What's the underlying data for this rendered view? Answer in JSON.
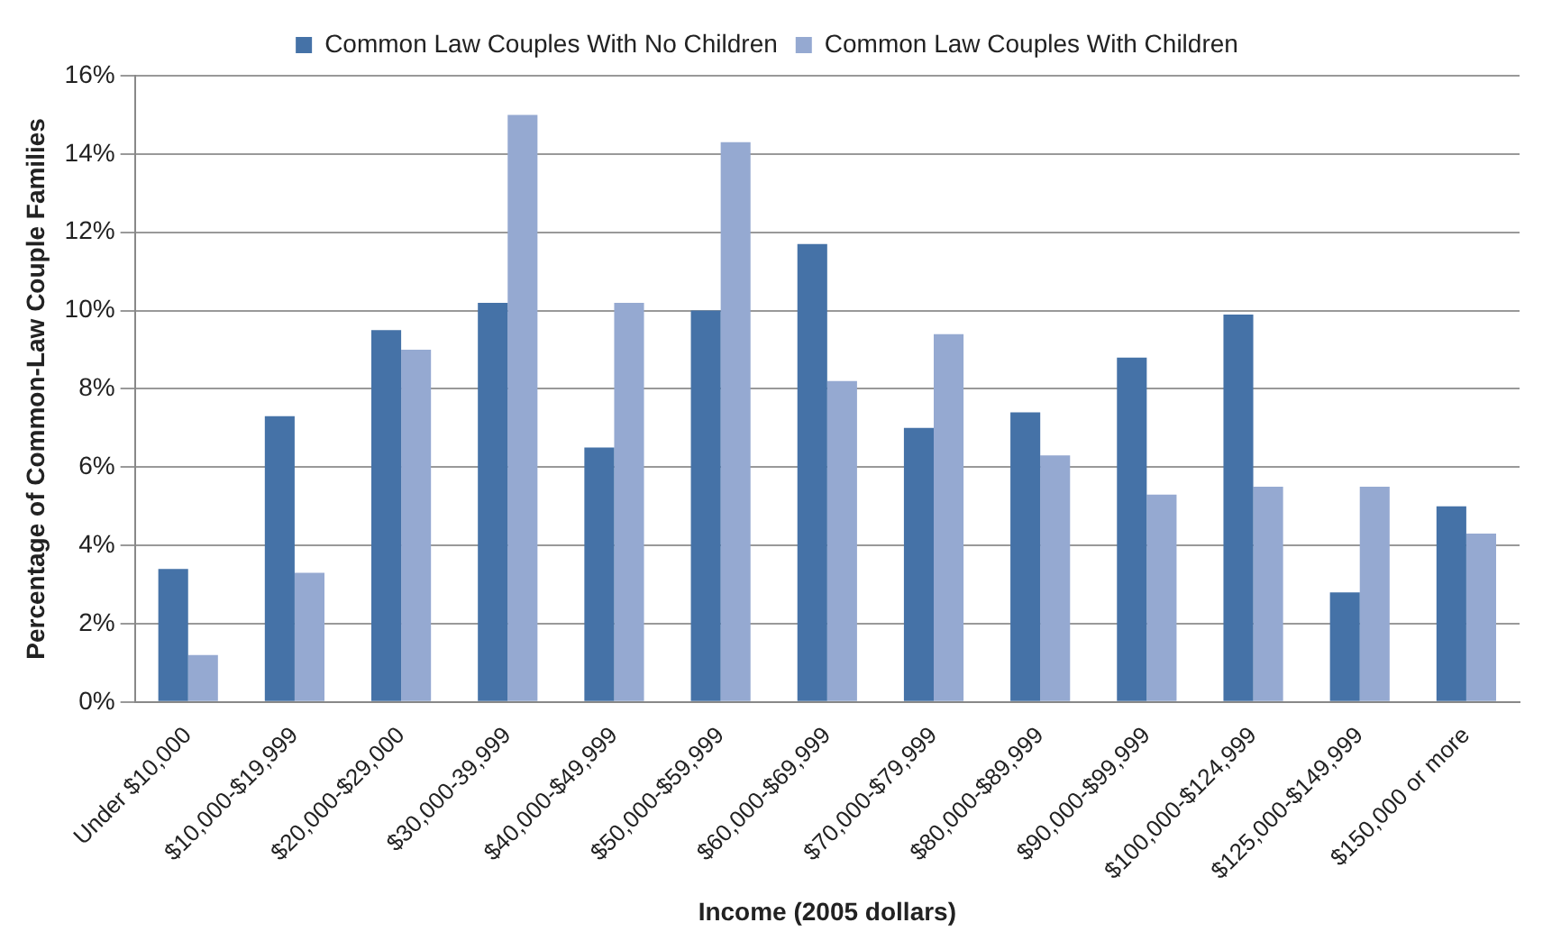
{
  "chart_data": {
    "type": "bar",
    "xlabel": "Income (2005 dollars)",
    "ylabel": "Percentage of Common-Law Couple Families",
    "categories": [
      "Under $10,000",
      "$10,000-$19,999",
      "$20,000-$29,000",
      "$30,000-39,999",
      "$40,000-$49,999",
      "$50,000-$59,999",
      "$60,000-$69,999",
      "$70,000-$79,999",
      "$80,000-$89,999",
      "$90,000-$99,999",
      "$100,000-$124,999",
      "$125,000-$149,999",
      "$150,000 or more"
    ],
    "series": [
      {
        "name": "Common Law Couples With No Children",
        "color": "#4572a7",
        "values": [
          3.4,
          7.3,
          9.5,
          10.2,
          6.5,
          10.0,
          11.7,
          7.0,
          7.4,
          8.8,
          9.9,
          2.8,
          5.0
        ]
      },
      {
        "name": "Common Law Couples With Children",
        "color": "#95a9d1",
        "values": [
          1.2,
          3.3,
          9.0,
          15.0,
          10.2,
          14.3,
          8.2,
          9.4,
          6.3,
          5.3,
          5.5,
          5.5,
          4.3
        ]
      }
    ],
    "ylim": [
      0,
      16
    ],
    "yticks": [
      {
        "value": 0,
        "label": "0%"
      },
      {
        "value": 2,
        "label": "2%"
      },
      {
        "value": 4,
        "label": "4%"
      },
      {
        "value": 6,
        "label": "6%"
      },
      {
        "value": 8,
        "label": "8%"
      },
      {
        "value": 10,
        "label": "10%"
      },
      {
        "value": 12,
        "label": "12%"
      },
      {
        "value": 14,
        "label": "14%"
      },
      {
        "value": 16,
        "label": "16%"
      }
    ],
    "grid": "y",
    "legend": "top"
  }
}
